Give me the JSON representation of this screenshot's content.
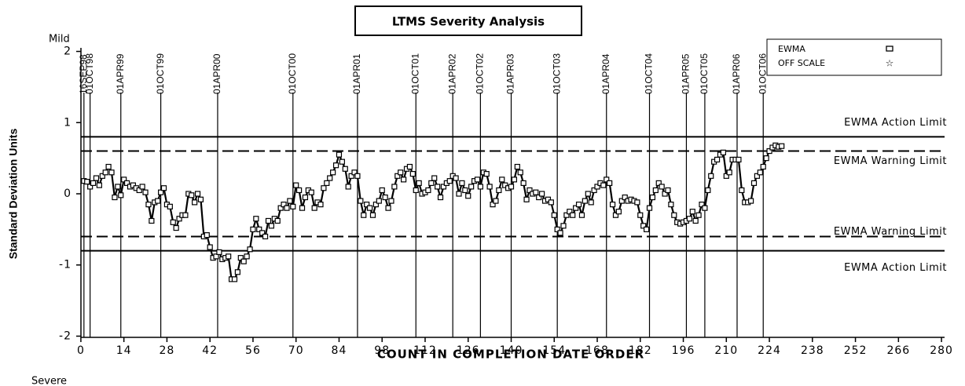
{
  "chart_data": {
    "type": "line",
    "title": "LTMS Severity Analysis",
    "x_label": "COUNT IN COMPLETION DATE ORDER",
    "y_label": "Standard Deviation Units",
    "top_note": "Mild",
    "bottom_note": "Severe",
    "off_scale_label": "OFF SCALE",
    "xlim": [
      -1,
      281
    ],
    "ylim": [
      -2.05,
      2.05
    ],
    "xticks": [
      0,
      14,
      28,
      42,
      56,
      70,
      84,
      98,
      112,
      126,
      140,
      154,
      168,
      182,
      196,
      210,
      224,
      238,
      252,
      266,
      280
    ],
    "yticks": [
      -2,
      -1,
      0,
      1,
      2
    ],
    "reference_lines": [
      {
        "value": 0.8,
        "label": "EWMA Action Limit",
        "style": "solid"
      },
      {
        "value": 0.6,
        "label": "EWMA Warning Limit",
        "style": "dashed"
      },
      {
        "value": -0.6,
        "label": "EWMA Warning Limit",
        "style": "dashed"
      },
      {
        "value": -0.8,
        "label": "EWMA Action Limit",
        "style": "solid"
      }
    ],
    "date_markers": [
      {
        "x": 1,
        "label": "16SEP98"
      },
      {
        "x": 3,
        "label": "01OCT98"
      },
      {
        "x": 13,
        "label": "01APR99"
      },
      {
        "x": 26,
        "label": "01OCT99"
      },
      {
        "x": 44.5,
        "label": "01APR00"
      },
      {
        "x": 69,
        "label": "01OCT00"
      },
      {
        "x": 90,
        "label": "01APR01"
      },
      {
        "x": 109,
        "label": "01OCT01"
      },
      {
        "x": 121,
        "label": "01APR02"
      },
      {
        "x": 130,
        "label": "01OCT02"
      },
      {
        "x": 140,
        "label": "01APR03"
      },
      {
        "x": 155,
        "label": "01OCT03"
      },
      {
        "x": 171,
        "label": "01APR04"
      },
      {
        "x": 185,
        "label": "01OCT04"
      },
      {
        "x": 197,
        "label": "01APR05"
      },
      {
        "x": 203,
        "label": "01OCT05"
      },
      {
        "x": 213.5,
        "label": "01APR06"
      },
      {
        "x": 222,
        "label": "01OCT06"
      }
    ],
    "x": [
      1,
      2,
      3,
      4,
      5,
      6,
      7,
      8,
      9,
      10,
      11,
      12,
      13,
      14,
      15,
      16,
      17,
      18,
      19,
      20,
      21,
      22,
      23,
      24,
      25,
      26,
      27,
      28,
      29,
      30,
      31,
      32,
      33,
      34,
      35,
      36,
      37,
      38,
      39,
      40,
      41,
      42,
      43,
      44,
      45,
      46,
      47,
      48,
      49,
      50,
      51,
      52,
      53,
      54,
      55,
      56,
      57,
      58,
      59,
      60,
      61,
      62,
      63,
      64,
      65,
      66,
      67,
      68,
      69,
      70,
      71,
      72,
      73,
      74,
      75,
      76,
      77,
      78,
      79,
      80,
      81,
      82,
      83,
      84,
      85,
      86,
      87,
      88,
      89,
      90,
      91,
      92,
      93,
      94,
      95,
      96,
      97,
      98,
      99,
      100,
      101,
      102,
      103,
      104,
      105,
      106,
      107,
      108,
      109,
      110,
      111,
      112,
      113,
      114,
      115,
      116,
      117,
      118,
      119,
      120,
      121,
      122,
      123,
      124,
      125,
      126,
      127,
      128,
      129,
      130,
      131,
      132,
      133,
      134,
      135,
      136,
      137,
      138,
      139,
      140,
      141,
      142,
      143,
      144,
      145,
      146,
      147,
      148,
      149,
      150,
      151,
      152,
      153,
      154,
      155,
      156,
      157,
      158,
      159,
      160,
      161,
      162,
      163,
      164,
      165,
      166,
      167,
      168,
      169,
      170,
      171,
      172,
      173,
      174,
      175,
      176,
      177,
      178,
      179,
      180,
      181,
      182,
      183,
      184,
      185,
      186,
      187,
      188,
      189,
      190,
      191,
      192,
      193,
      194,
      195,
      196,
      197,
      198,
      199,
      200,
      201,
      202,
      203,
      204,
      205,
      206,
      207,
      208,
      209,
      210,
      211,
      212,
      213,
      214,
      215,
      216,
      217,
      218,
      219,
      220,
      221,
      222,
      223,
      224,
      225,
      226,
      227,
      228
    ],
    "series": [
      {
        "name": "EWMA",
        "color": "#000000",
        "values": [
          0.18,
          0.17,
          0.1,
          0.15,
          0.22,
          0.12,
          0.25,
          0.3,
          0.38,
          0.3,
          -0.05,
          0.1,
          -0.02,
          0.2,
          0.15,
          0.1,
          0.12,
          0.08,
          0.05,
          0.1,
          0.02,
          -0.15,
          -0.38,
          -0.12,
          -0.1,
          0.02,
          0.08,
          -0.15,
          -0.18,
          -0.4,
          -0.48,
          -0.35,
          -0.3,
          -0.3,
          0.0,
          -0.02,
          -0.12,
          0.0,
          -0.08,
          -0.6,
          -0.58,
          -0.75,
          -0.9,
          -0.88,
          -0.82,
          -0.92,
          -0.9,
          -0.88,
          -1.2,
          -1.2,
          -1.1,
          -0.9,
          -0.95,
          -0.88,
          -0.78,
          -0.5,
          -0.35,
          -0.5,
          -0.55,
          -0.6,
          -0.38,
          -0.45,
          -0.35,
          -0.38,
          -0.2,
          -0.15,
          -0.2,
          -0.1,
          -0.18,
          0.12,
          0.05,
          -0.2,
          -0.05,
          0.05,
          0.02,
          -0.2,
          -0.12,
          -0.15,
          0.08,
          0.15,
          0.22,
          0.3,
          0.4,
          0.55,
          0.45,
          0.35,
          0.1,
          0.25,
          0.3,
          0.25,
          -0.1,
          -0.3,
          -0.15,
          -0.2,
          -0.3,
          -0.15,
          -0.1,
          0.05,
          -0.05,
          -0.2,
          -0.1,
          0.1,
          0.25,
          0.3,
          0.2,
          0.35,
          0.38,
          0.28,
          0.05,
          0.15,
          0.0,
          0.02,
          0.05,
          0.15,
          0.22,
          0.1,
          -0.05,
          0.1,
          0.15,
          0.18,
          0.25,
          0.22,
          0.0,
          0.15,
          0.05,
          -0.03,
          0.1,
          0.18,
          0.2,
          0.1,
          0.3,
          0.28,
          0.1,
          -0.15,
          -0.1,
          0.05,
          0.2,
          0.12,
          0.08,
          0.1,
          0.2,
          0.38,
          0.3,
          0.15,
          -0.08,
          0.05,
          0.0,
          0.02,
          -0.05,
          0.0,
          -0.1,
          -0.08,
          -0.12,
          -0.3,
          -0.5,
          -0.55,
          -0.45,
          -0.3,
          -0.25,
          -0.3,
          -0.2,
          -0.15,
          -0.3,
          -0.1,
          0.0,
          -0.12,
          0.05,
          0.1,
          0.15,
          0.12,
          0.2,
          0.15,
          -0.15,
          -0.3,
          -0.25,
          -0.1,
          -0.05,
          -0.1,
          -0.08,
          -0.1,
          -0.12,
          -0.3,
          -0.45,
          -0.5,
          -0.2,
          -0.05,
          0.05,
          0.15,
          0.1,
          0.0,
          0.05,
          -0.15,
          -0.3,
          -0.4,
          -0.42,
          -0.4,
          -0.38,
          -0.35,
          -0.25,
          -0.38,
          -0.3,
          -0.15,
          -0.2,
          0.05,
          0.25,
          0.45,
          0.48,
          0.55,
          0.58,
          0.25,
          0.3,
          0.48,
          0.48,
          0.48,
          0.05,
          -0.12,
          -0.12,
          -0.1,
          0.15,
          0.25,
          0.3,
          0.38,
          0.5,
          0.6,
          0.65,
          0.68,
          0.66,
          0.67
        ]
      }
    ]
  }
}
